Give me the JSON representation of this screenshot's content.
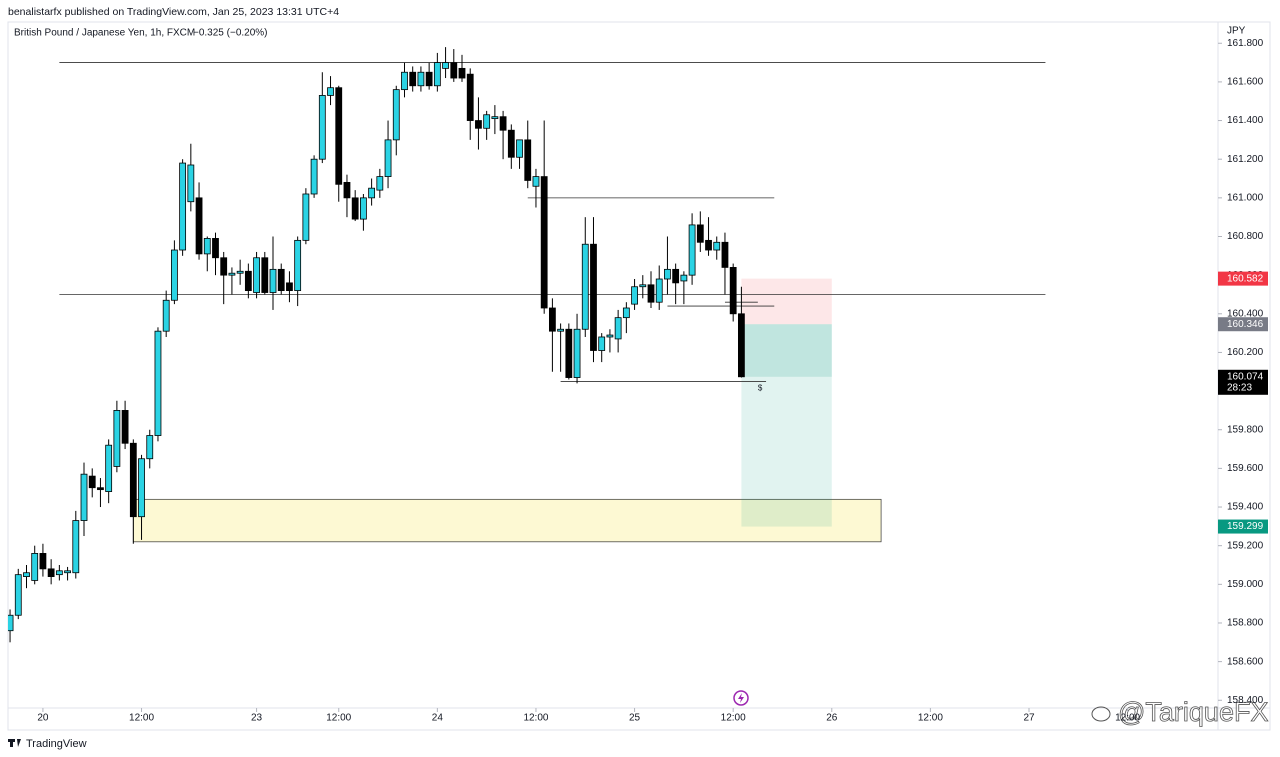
{
  "header": {
    "publisher": "benalistarfx published on TradingView.com, Jan 25, 2023 13:31 UTC+4",
    "symbol": "British Pound / Japanese Yen, 1h, FXCM",
    "change": "−0.325 (−0.20%)"
  },
  "footer": {
    "brand": "TradingView",
    "watermark": "@TariqueFX"
  },
  "chart_data": {
    "type": "candlestick",
    "currency": "JPY",
    "up_color": "#2bd3e4",
    "down_color": "#000000",
    "open": [
      158.76,
      158.84,
      159.04,
      159.02,
      159.16,
      159.08,
      159.05,
      159.06,
      159.06,
      159.33,
      159.56,
      159.5,
      159.48,
      159.61,
      159.9,
      159.73,
      159.35,
      159.65,
      159.77,
      160.31,
      160.47,
      160.73,
      160.98,
      161.0,
      160.71,
      160.79,
      160.69,
      160.6,
      160.61,
      160.62,
      160.51,
      160.69,
      160.51,
      160.63,
      160.56,
      160.52,
      160.78,
      161.02,
      161.2,
      161.53,
      161.57,
      161.08,
      161.0,
      160.89,
      161.0,
      161.04,
      161.11,
      161.3,
      161.56,
      161.65,
      161.58,
      161.65,
      161.58,
      161.67,
      161.7,
      161.67,
      161.64,
      161.4,
      161.36,
      161.41,
      161.42,
      161.35,
      161.21,
      161.3,
      161.06,
      161.11,
      160.43,
      160.31,
      160.32,
      160.07,
      160.32,
      160.76,
      160.21,
      160.28,
      160.27,
      160.38,
      160.45,
      160.54,
      160.55,
      160.46,
      160.58,
      160.63,
      160.57,
      160.6,
      160.86,
      160.78,
      160.73,
      160.77,
      160.64,
      160.4
    ],
    "high": [
      158.87,
      159.08,
      159.1,
      159.2,
      159.21,
      159.13,
      159.1,
      159.09,
      159.38,
      159.63,
      159.6,
      159.55,
      159.75,
      159.95,
      159.95,
      159.75,
      159.67,
      159.8,
      160.33,
      160.52,
      160.78,
      161.2,
      161.28,
      161.08,
      160.8,
      160.82,
      160.72,
      160.64,
      160.68,
      160.66,
      160.72,
      160.72,
      160.8,
      160.66,
      160.62,
      160.8,
      161.05,
      161.22,
      161.65,
      161.63,
      161.58,
      161.12,
      161.04,
      161.02,
      161.1,
      161.15,
      161.4,
      161.58,
      161.7,
      161.68,
      161.68,
      161.7,
      161.75,
      161.78,
      161.77,
      161.74,
      161.67,
      161.52,
      161.45,
      161.48,
      161.45,
      161.38,
      161.3,
      161.4,
      161.15,
      161.4,
      160.48,
      160.35,
      160.35,
      160.4,
      160.9,
      160.9,
      160.3,
      160.32,
      160.42,
      160.46,
      160.58,
      160.6,
      160.62,
      160.65,
      160.8,
      160.66,
      160.62,
      160.92,
      160.93,
      160.9,
      160.8,
      160.82,
      160.66,
      160.54
    ],
    "low": [
      158.7,
      158.82,
      158.98,
      159.0,
      159.04,
      159.0,
      159.02,
      159.02,
      159.03,
      159.25,
      159.45,
      159.4,
      159.42,
      159.58,
      159.7,
      159.21,
      159.23,
      159.6,
      159.74,
      160.28,
      160.45,
      160.7,
      160.93,
      160.68,
      160.62,
      160.6,
      160.45,
      160.5,
      160.55,
      160.48,
      160.48,
      160.5,
      160.42,
      160.5,
      160.46,
      160.44,
      160.76,
      161.0,
      161.18,
      161.48,
      160.98,
      160.9,
      160.88,
      160.83,
      160.96,
      161.0,
      161.05,
      161.22,
      161.52,
      161.55,
      161.55,
      161.56,
      161.55,
      161.62,
      161.6,
      161.6,
      161.3,
      161.25,
      161.3,
      161.33,
      161.2,
      161.15,
      161.15,
      161.05,
      160.95,
      160.4,
      160.1,
      160.1,
      160.06,
      160.04,
      160.28,
      160.15,
      160.15,
      160.2,
      160.2,
      160.3,
      160.42,
      160.48,
      160.43,
      160.42,
      160.5,
      160.45,
      160.45,
      160.55,
      160.72,
      160.7,
      160.68,
      160.5,
      160.36,
      160.07
    ],
    "close": [
      158.84,
      159.05,
      159.06,
      159.16,
      159.08,
      159.04,
      159.07,
      159.07,
      159.33,
      159.57,
      159.5,
      159.49,
      159.72,
      159.9,
      159.73,
      159.35,
      159.65,
      159.77,
      160.31,
      160.47,
      160.73,
      161.18,
      161.17,
      160.71,
      160.79,
      160.69,
      160.6,
      160.61,
      160.62,
      160.52,
      160.69,
      160.51,
      160.63,
      160.52,
      160.52,
      160.78,
      161.02,
      161.2,
      161.53,
      161.57,
      161.07,
      161.0,
      160.89,
      161.0,
      161.05,
      161.11,
      161.3,
      161.56,
      161.65,
      161.58,
      161.65,
      161.58,
      161.7,
      161.7,
      161.62,
      161.62,
      161.4,
      161.36,
      161.43,
      161.42,
      161.35,
      161.21,
      161.3,
      161.09,
      161.11,
      160.43,
      160.31,
      160.32,
      160.07,
      160.32,
      160.76,
      160.21,
      160.28,
      160.29,
      160.38,
      160.43,
      160.54,
      160.55,
      160.46,
      160.58,
      160.63,
      160.56,
      160.6,
      160.86,
      160.77,
      160.73,
      160.77,
      160.64,
      160.4,
      160.074
    ],
    "countdown": "28:23",
    "xlim": [
      -0.25,
      147
    ],
    "ylim": [
      158.36,
      161.91
    ],
    "xticks": [
      {
        "value": 4,
        "label": "20"
      },
      {
        "value": 16,
        "label": "12:00"
      },
      {
        "value": 30,
        "label": "23"
      },
      {
        "value": 40,
        "label": "12:00"
      },
      {
        "value": 52,
        "label": "24"
      },
      {
        "value": 64,
        "label": "12:00"
      },
      {
        "value": 76,
        "label": "25"
      },
      {
        "value": 88,
        "label": "12:00"
      },
      {
        "value": 100,
        "label": "26"
      },
      {
        "value": 112,
        "label": "12:00"
      },
      {
        "value": 124,
        "label": "27"
      },
      {
        "value": 136,
        "label": "12:00"
      }
    ],
    "yticks": [
      {
        "value": 158.4,
        "label": "158.400"
      },
      {
        "value": 158.6,
        "label": "158.600"
      },
      {
        "value": 158.8,
        "label": "158.800"
      },
      {
        "value": 159.0,
        "label": "159.000"
      },
      {
        "value": 159.2,
        "label": "159.200"
      },
      {
        "value": 159.4,
        "label": "159.400"
      },
      {
        "value": 159.6,
        "label": "159.600"
      },
      {
        "value": 159.8,
        "label": "159.800"
      },
      {
        "value": 160.0,
        "label": "160.000"
      },
      {
        "value": 160.2,
        "label": "160.200"
      },
      {
        "value": 160.4,
        "label": "160.400"
      },
      {
        "value": 160.6,
        "label": "160.600"
      },
      {
        "value": 160.8,
        "label": "160.800"
      },
      {
        "value": 161.0,
        "label": "161.000"
      },
      {
        "value": 161.2,
        "label": "161.200"
      },
      {
        "value": 161.4,
        "label": "161.400"
      },
      {
        "value": 161.6,
        "label": "161.600"
      },
      {
        "value": 161.8,
        "label": "161.800"
      }
    ],
    "levels": [
      {
        "value": 161.7,
        "from": 6,
        "to": 126
      },
      {
        "value": 161.0,
        "from": 63,
        "to": 93
      },
      {
        "value": 160.5,
        "from": 6,
        "to": 126
      },
      {
        "value": 160.44,
        "from": 80,
        "to": 93
      },
      {
        "value": 160.46,
        "from": 87,
        "to": 91
      },
      {
        "value": 160.05,
        "from": 67,
        "to": 92
      }
    ],
    "level_note": "$",
    "zone": {
      "top": 159.44,
      "bottom": 159.22,
      "from": 15,
      "to": 106,
      "color": "#fdf9d3"
    },
    "position": {
      "stop": 160.582,
      "entry": 160.346,
      "target": 159.299,
      "from": 89,
      "to": 100,
      "stop_color": "#f23645",
      "entry_color": "#787b86",
      "target_color": "#089981"
    }
  }
}
